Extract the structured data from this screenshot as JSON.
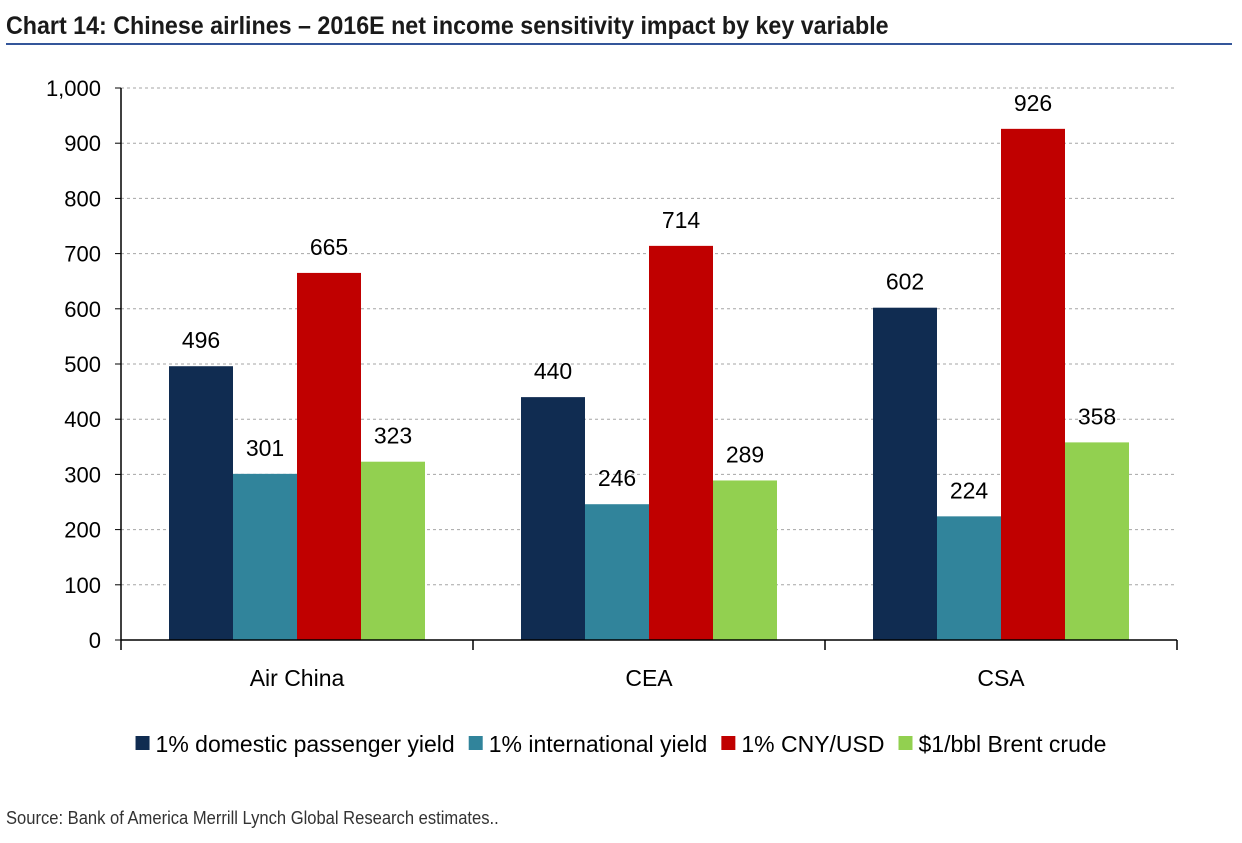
{
  "title": "Chart 14: Chinese airlines – 2016E net income sensitivity impact by key variable",
  "source": "Source: Bank of America Merrill Lynch Global Research estimates..",
  "colors": {
    "title_rule": "#34569a",
    "gridline": "#a6a6a6",
    "axis": "#000000"
  },
  "chart_data": {
    "type": "bar",
    "categories": [
      "Air China",
      "CEA",
      "CSA"
    ],
    "series": [
      {
        "name": "1% domestic passenger yield",
        "color": "#102c51",
        "values": [
          496,
          440,
          602
        ]
      },
      {
        "name": "1% international yield",
        "color": "#31849b",
        "values": [
          301,
          246,
          224
        ]
      },
      {
        "name": "1% CNY/USD",
        "color": "#c00000",
        "values": [
          665,
          714,
          926
        ]
      },
      {
        "name": "$1/bbl Brent crude",
        "color": "#92d050",
        "values": [
          323,
          289,
          358
        ]
      }
    ],
    "ylim": [
      0,
      1000
    ],
    "yticks": [
      0,
      100,
      200,
      300,
      400,
      500,
      600,
      700,
      800,
      900,
      1000
    ],
    "ytick_labels": [
      "0",
      "100",
      "200",
      "300",
      "400",
      "500",
      "600",
      "700",
      "800",
      "900",
      "1,000"
    ],
    "grid": true,
    "legend_position": "bottom",
    "data_labels": true
  }
}
